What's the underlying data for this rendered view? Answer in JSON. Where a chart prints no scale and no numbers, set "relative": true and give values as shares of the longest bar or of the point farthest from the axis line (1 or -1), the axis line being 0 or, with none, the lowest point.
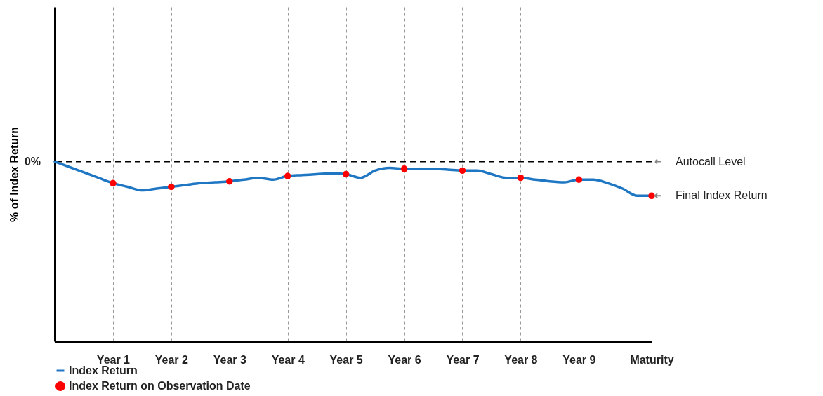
{
  "chart_data": {
    "type": "line",
    "relative": true,
    "ylabel": "% of Index Return",
    "grid": "x",
    "legend": "bottom",
    "categories": [
      null,
      null,
      null,
      null,
      "Year 1",
      null,
      null,
      null,
      "Year 2",
      null,
      null,
      null,
      "Year 3",
      null,
      null,
      null,
      "Year 4",
      null,
      null,
      null,
      "Year 5",
      null,
      null,
      null,
      "Year 6",
      null,
      null,
      null,
      "Year 7",
      null,
      null,
      null,
      "Year 8",
      null,
      null,
      null,
      "Year 9",
      null,
      null,
      null,
      null,
      "Maturity"
    ],
    "series": [
      {
        "name": "Index Return",
        "color": "#1f77c4",
        "values": [
          1.0,
          0.97,
          0.94,
          0.91,
          0.88,
          0.86,
          0.84,
          0.85,
          0.86,
          0.87,
          0.88,
          0.885,
          0.89,
          0.9,
          0.91,
          0.9,
          0.92,
          0.925,
          0.93,
          0.935,
          0.93,
          0.91,
          0.95,
          0.965,
          0.96,
          0.96,
          0.96,
          0.955,
          0.95,
          0.95,
          0.93,
          0.91,
          0.91,
          0.9,
          0.89,
          0.885,
          0.9,
          0.9,
          0.88,
          0.85,
          0.81,
          0.81
        ]
      },
      {
        "name": "Index Return on Observation Date",
        "type": "scatter",
        "color": "#ff0000",
        "x": [
          "Year 1",
          "Year 2",
          "Year 3",
          "Year 4",
          "Year 5",
          "Year 6",
          "Year 7",
          "Year 8",
          "Year 9",
          "Maturity"
        ],
        "values": [
          0.88,
          0.86,
          0.89,
          0.92,
          0.93,
          0.96,
          0.95,
          0.91,
          0.9,
          0.81
        ]
      }
    ],
    "ref_lines": [
      {
        "axis": "y",
        "value": 1,
        "label": "Autocall Level",
        "line_style": "dashed",
        "color": "#000000"
      }
    ],
    "annotations": [
      "0%",
      "Final Index Return"
    ]
  }
}
